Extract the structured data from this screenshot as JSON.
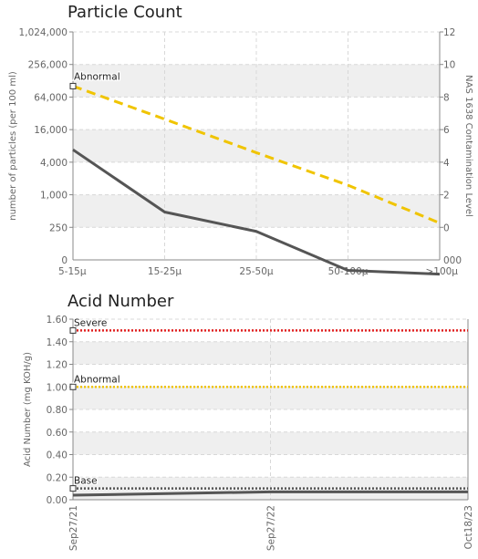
{
  "colors": {
    "line_dark": "#555555",
    "abnormal": "#f0c400",
    "severe": "#e02020",
    "base": "#555555",
    "band": "#efefef",
    "grid": "#d8d8d8",
    "axis_text": "#666666"
  },
  "chart_data": [
    {
      "type": "line",
      "title": "Particle Count",
      "ylabel": "number of particles (per 100 ml)",
      "y2label": "NAS 1638 Contamination Level",
      "categories": [
        "5-15μ",
        "15-25μ",
        "25-50μ",
        "50-100μ",
        ">100μ"
      ],
      "yscale": "log2",
      "ylim": [
        62.5,
        1024000
      ],
      "yticks": [
        1024000,
        256000,
        64000,
        16000,
        4000,
        1000,
        250
      ],
      "yticklabels": [
        "1,024,000",
        "256,000",
        "64,000",
        "16,000",
        "4,000",
        "1,000",
        "250"
      ],
      "y2lim": [
        -2,
        12
      ],
      "y2ticks": [
        12,
        10,
        8,
        6,
        4,
        2,
        0
      ],
      "y2ticklabels": [
        "12",
        "10",
        "8",
        "6",
        "4",
        "2",
        "0"
      ],
      "bottom_tick_labels": {
        "left": "0",
        "right": "000"
      },
      "series": [
        {
          "values": [
            6800,
            480,
            210,
            40,
            34
          ]
        }
      ],
      "threshold_series": {
        "label": "Abnormal",
        "values": [
          102000,
          25000,
          6000,
          1500,
          300
        ]
      },
      "grid": true
    },
    {
      "type": "line",
      "title": "Acid Number",
      "ylabel": "Acid Number (mg KOH/g)",
      "x": [
        "Sep27/21",
        "Sep27/22",
        "Oct18/23"
      ],
      "ylim": [
        0,
        1.6
      ],
      "yticks": [
        1.6,
        1.4,
        1.2,
        1.0,
        0.8,
        0.6,
        0.4,
        0.2,
        0.0
      ],
      "yticklabels": [
        "1.60",
        "1.40",
        "1.20",
        "1.00",
        "0.80",
        "0.60",
        "0.40",
        "0.20",
        "0.00"
      ],
      "thresholds": [
        {
          "label": "Severe",
          "value": 1.5
        },
        {
          "label": "Abnormal",
          "value": 1.0
        },
        {
          "label": "Base",
          "value": 0.1
        }
      ],
      "series": [
        {
          "values": [
            0.04,
            0.07,
            0.07
          ]
        }
      ],
      "grid": true
    }
  ]
}
